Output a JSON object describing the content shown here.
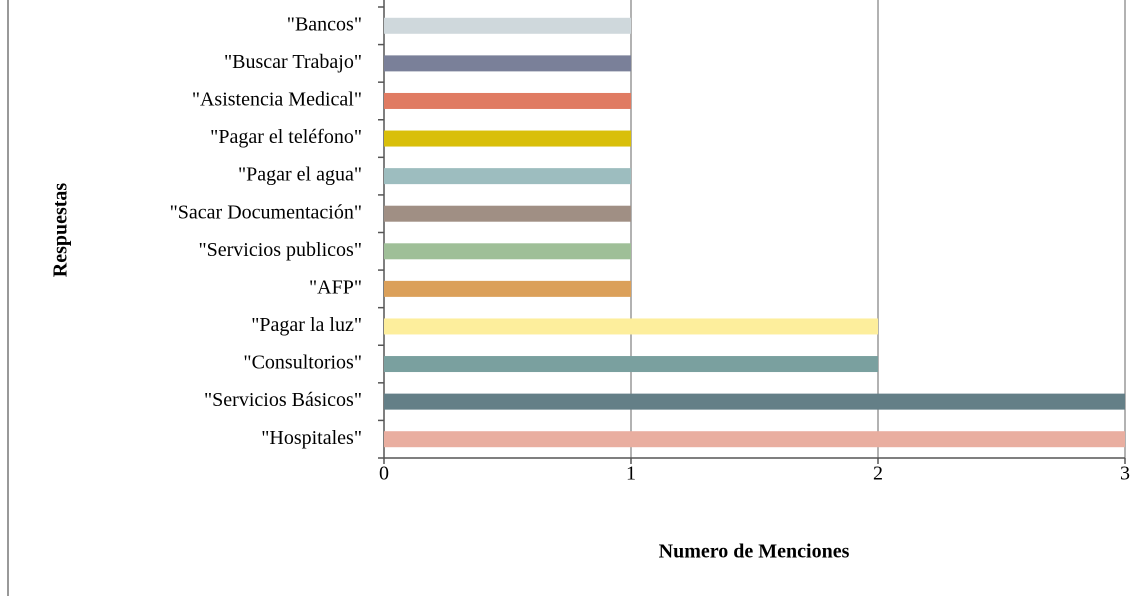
{
  "chart_data": {
    "type": "bar",
    "orientation": "horizontal",
    "categories": [
      "\"Bancos\"",
      "\"Buscar Trabajo\"",
      "\"Asistencia Medical\"",
      "\"Pagar el teléfono\"",
      "\"Pagar el agua\"",
      "\"Sacar Documentación\"",
      "\"Servicios publicos\"",
      "\"AFP\"",
      "\"Pagar la luz\"",
      "\"Consultorios\"",
      "\"Servicios Básicos\"",
      "\"Hospitales\""
    ],
    "values": [
      1,
      1,
      1,
      1,
      1,
      1,
      1,
      1,
      2,
      2,
      3,
      3
    ],
    "colors": [
      "#cfd8dc",
      "#7a8099",
      "#e07b62",
      "#d9bf0a",
      "#9dbdbf",
      "#a08f84",
      "#9fbf98",
      "#dba05a",
      "#fdee9c",
      "#7aa09f",
      "#647f87",
      "#e9aea0"
    ],
    "xlim": [
      0,
      3
    ],
    "xticks": [
      0,
      1,
      2,
      3
    ],
    "grid": true,
    "xlabel": "Numero de Menciones",
    "ylabel": "Respuestas"
  }
}
